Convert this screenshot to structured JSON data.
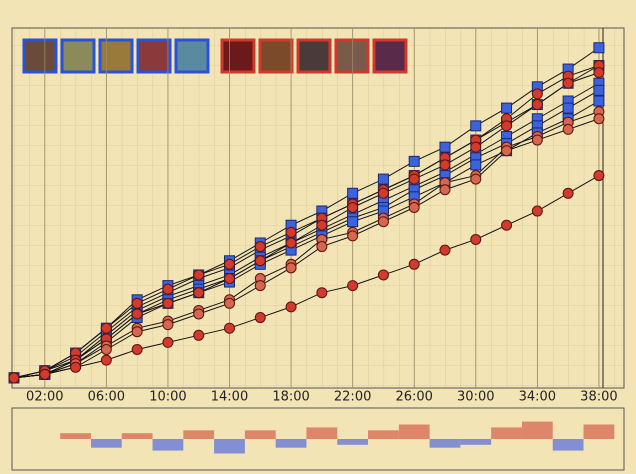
{
  "chart_data": {
    "type": "line",
    "x": [
      0,
      2,
      4,
      6,
      8,
      10,
      12,
      14,
      16,
      18,
      20,
      22,
      24,
      26,
      28,
      30,
      32,
      34,
      36,
      38
    ],
    "xlim": [
      0,
      39.5
    ],
    "xticks": [
      {
        "value": 2,
        "label": "02:00"
      },
      {
        "value": 6,
        "label": "06:00"
      },
      {
        "value": 10,
        "label": "10:00"
      },
      {
        "value": 14,
        "label": "14:00"
      },
      {
        "value": 18,
        "label": "18:00"
      },
      {
        "value": 22,
        "label": "22:00"
      },
      {
        "value": 26,
        "label": "26:00"
      },
      {
        "value": 30,
        "label": "30:00"
      },
      {
        "value": 34,
        "label": "34:00"
      },
      {
        "value": 38,
        "label": "38:00"
      }
    ],
    "ylim": [
      0,
      100
    ],
    "grid": true,
    "series": [
      {
        "color": "#3c63dd",
        "marker": "square",
        "values": [
          2,
          4,
          9,
          16,
          24,
          28,
          31,
          35,
          40,
          45,
          49,
          54,
          58,
          63,
          67,
          73,
          78,
          84,
          89,
          95
        ]
      },
      {
        "color": "#3c63dd",
        "marker": "square",
        "values": [
          2,
          4,
          8,
          15,
          22,
          26,
          30,
          33,
          38,
          42,
          47,
          51,
          55,
          59,
          64,
          69,
          74,
          79,
          85,
          90
        ]
      },
      {
        "color": "#3c63dd",
        "marker": "square",
        "values": [
          2,
          3,
          7,
          14,
          21,
          25,
          28,
          31,
          36,
          40,
          44,
          48,
          52,
          56,
          60,
          65,
          70,
          75,
          80,
          85
        ]
      },
      {
        "color": "#3c63dd",
        "marker": "square",
        "values": [
          2,
          3,
          7,
          13,
          20,
          24,
          27,
          30,
          35,
          39,
          43,
          47,
          50,
          55,
          59,
          64,
          68,
          73,
          78,
          83
        ]
      },
      {
        "color": "#3c63dd",
        "marker": "square",
        "values": [
          2,
          3,
          6,
          12,
          19,
          23,
          26,
          29,
          34,
          38,
          42,
          46,
          49,
          53,
          57,
          62,
          66,
          71,
          75,
          80
        ]
      },
      {
        "color": "#d23a2e",
        "marker": "circle",
        "values": [
          2,
          4,
          9,
          16,
          23,
          27,
          31,
          34,
          39,
          43,
          47,
          51,
          55,
          59,
          64,
          69,
          75,
          82,
          87,
          90
        ]
      },
      {
        "color": "#d23a2e",
        "marker": "circle",
        "values": [
          2,
          4,
          7,
          13,
          20,
          23,
          26,
          30,
          35,
          40,
          45,
          50,
          54,
          58,
          62,
          67,
          73,
          79,
          85,
          88
        ]
      },
      {
        "color": "#d5664f",
        "marker": "circle",
        "values": [
          2,
          3,
          6,
          11,
          16,
          18,
          21,
          24,
          30,
          34,
          41,
          43,
          47,
          51,
          57,
          59,
          67,
          70,
          74,
          77
        ]
      },
      {
        "color": "#d5664f",
        "marker": "circle",
        "values": [
          2,
          3,
          5,
          10,
          15,
          17,
          20,
          23,
          28,
          33,
          39,
          42,
          46,
          50,
          55,
          58,
          66,
          69,
          72,
          75
        ]
      },
      {
        "color": "#d23a2e",
        "marker": "circle",
        "values": [
          2,
          3,
          5,
          7,
          10,
          12,
          14,
          16,
          19,
          22,
          26,
          28,
          31,
          34,
          38,
          41,
          45,
          49,
          54,
          59
        ]
      }
    ],
    "difference": {
      "type": "bar",
      "ylim": [
        -10,
        10
      ],
      "pos_color": "#d9765d",
      "neg_color": "#6e7fd8",
      "values": [
        0,
        0,
        2,
        -3,
        2,
        -4,
        3,
        -5,
        3,
        -3,
        4,
        -2,
        3,
        5,
        -3,
        -2,
        4,
        6,
        -4,
        5
      ]
    }
  }
}
